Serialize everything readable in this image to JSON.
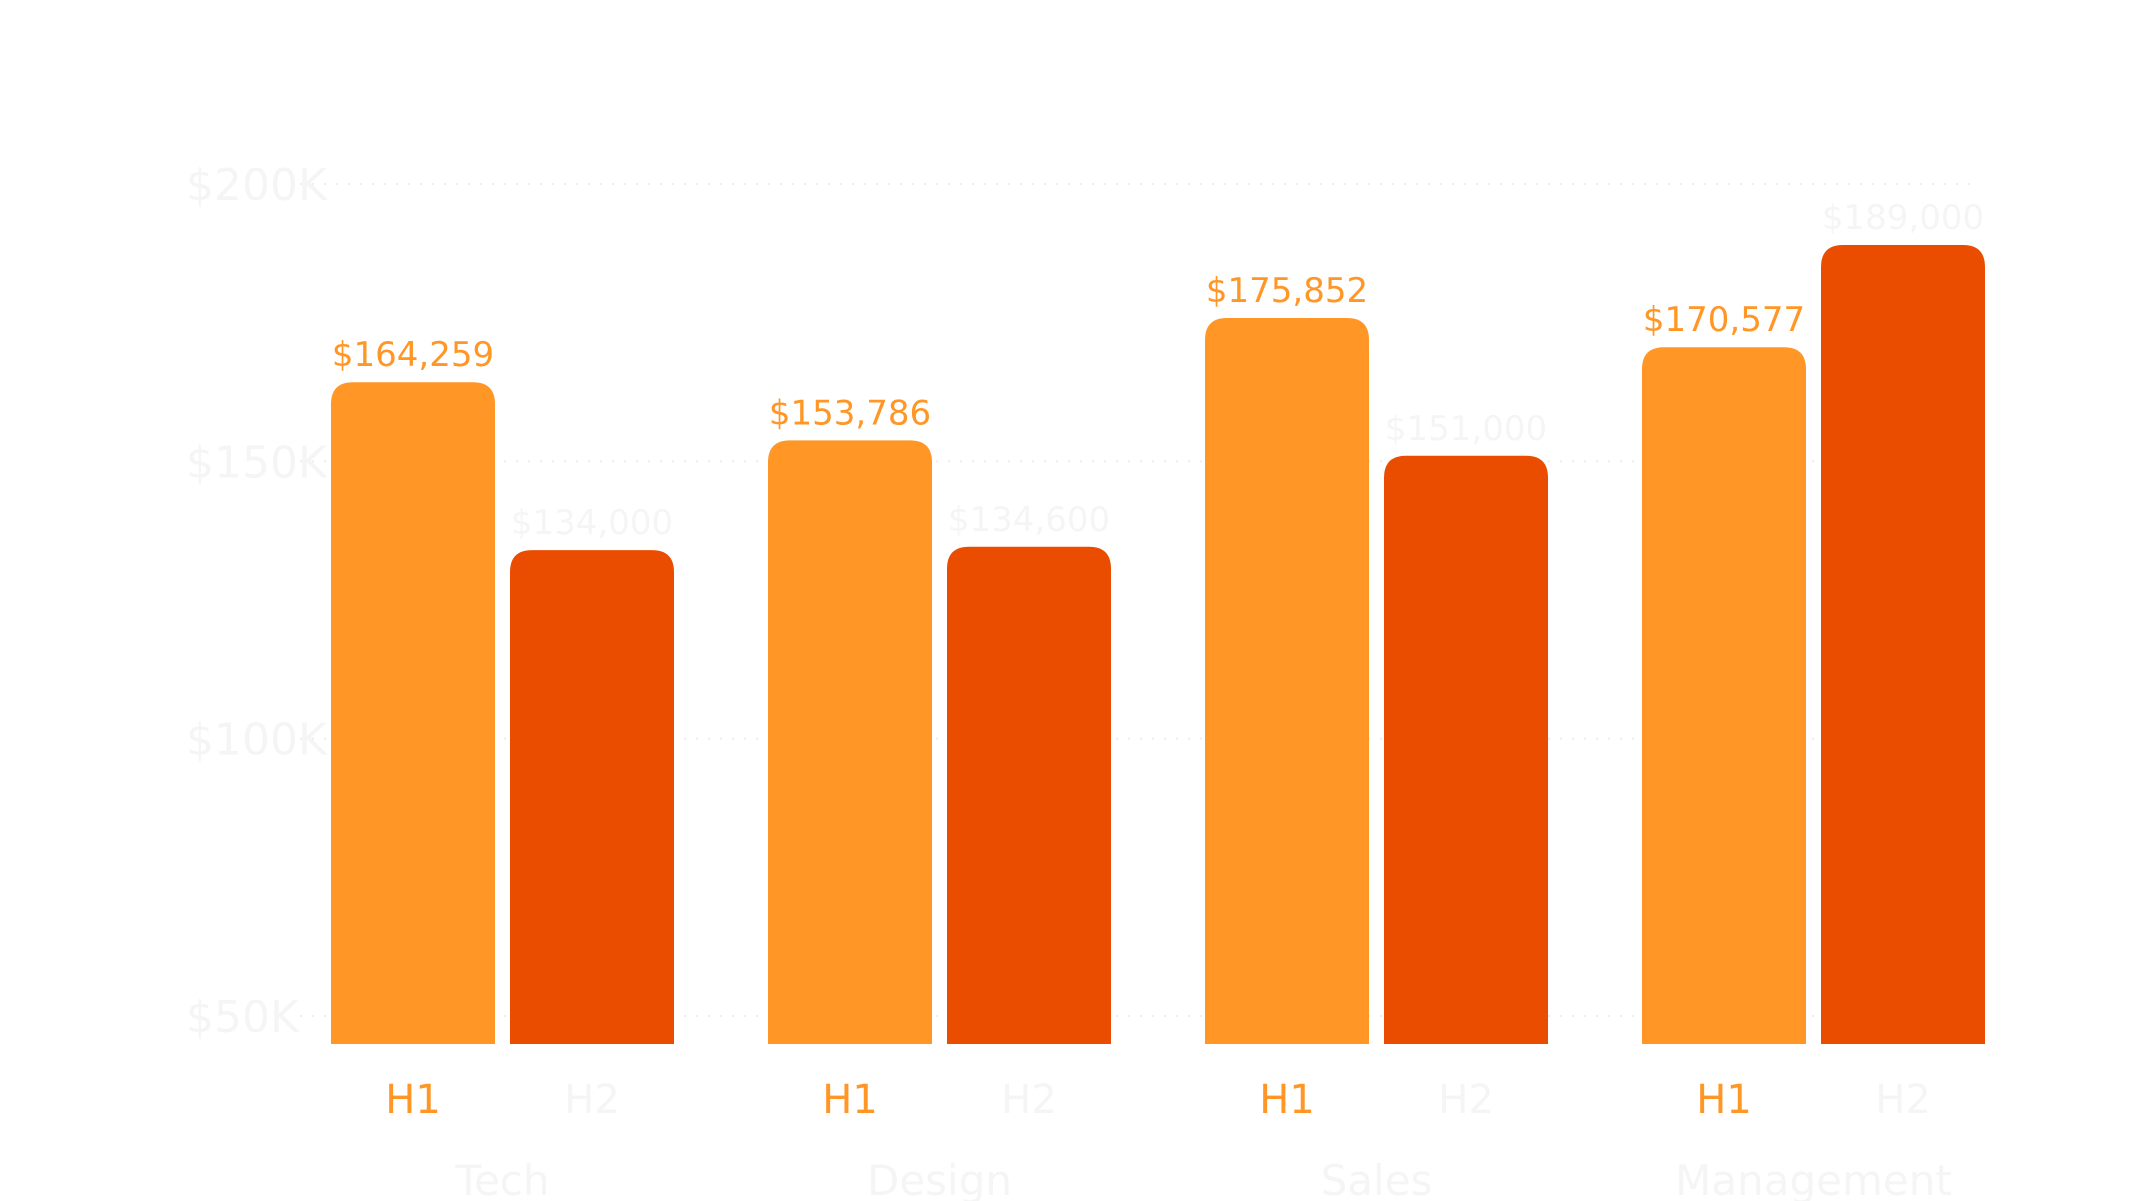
{
  "chart_data": {
    "type": "bar",
    "title": "",
    "xlabel": "",
    "ylabel": "",
    "ylim": [
      45000,
      200000
    ],
    "y_ticks": [
      {
        "value": 50000,
        "label": "$50K"
      },
      {
        "value": 100000,
        "label": "$100K"
      },
      {
        "value": 150000,
        "label": "$150K"
      },
      {
        "value": 200000,
        "label": "$200K"
      }
    ],
    "grid": true,
    "groups": [
      {
        "name": "Tech",
        "bars": [
          {
            "label": "H1",
            "value": 164259,
            "value_label": "$164,259"
          },
          {
            "label": "H2",
            "value": 134000,
            "value_label": "$134,000"
          }
        ]
      },
      {
        "name": "Design",
        "bars": [
          {
            "label": "H1",
            "value": 153786,
            "value_label": "$153,786"
          },
          {
            "label": "H2",
            "value": 134600,
            "value_label": "$134,600"
          }
        ]
      },
      {
        "name": "Sales",
        "bars": [
          {
            "label": "H1",
            "value": 175852,
            "value_label": "$175,852"
          },
          {
            "label": "H2",
            "value": 151000,
            "value_label": "$151,000"
          }
        ]
      },
      {
        "name": "Management",
        "bars": [
          {
            "label": "H1",
            "value": 170577,
            "value_label": "$170,577"
          },
          {
            "label": "H2",
            "value": 189000,
            "value_label": "$189,000"
          }
        ]
      }
    ],
    "colors": {
      "H1": "#FF9626",
      "H2": "#EB4D00",
      "h1_text": "#FF9626",
      "faint_text": "#F5F5F5",
      "grid": "#EEEEEE"
    }
  }
}
